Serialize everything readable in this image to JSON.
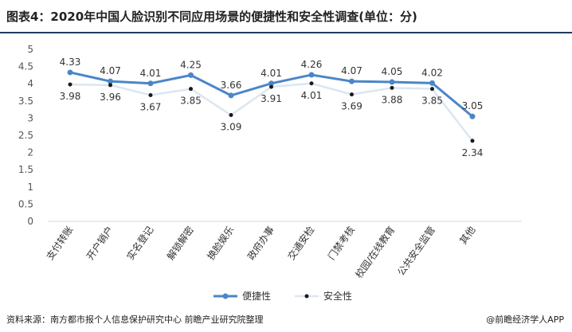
{
  "title": "图表4：2020年中国人脸识别不同应用场景的便捷性和安全性调查(单位：分)",
  "source": "资料来源：南方都市报个人信息保护研究中心 前瞻产业研究院整理",
  "credit": "@前瞻经济学人APP",
  "colors": {
    "series1": "#4a86c8",
    "series2": "#dce6f2",
    "marker2": "#1a1a1a",
    "topline": "#1f3a5f"
  },
  "chart_data": {
    "type": "line",
    "title": "图表4：2020年中国人脸识别不同应用场景的便捷性和安全性调查(单位：分)",
    "categories": [
      "支付转账",
      "开户销户",
      "实名登记",
      "解锁解密",
      "换脸娱乐",
      "政府办事",
      "交通安检",
      "门禁考核",
      "校园/在线教育",
      "公共安全监管",
      "其他"
    ],
    "series": [
      {
        "name": "便捷性",
        "values": [
          4.33,
          4.07,
          4.01,
          4.25,
          3.66,
          4.01,
          4.26,
          4.07,
          4.05,
          4.02,
          3.05
        ]
      },
      {
        "name": "安全性",
        "values": [
          3.98,
          3.96,
          3.67,
          3.85,
          3.09,
          3.91,
          4.01,
          3.69,
          3.88,
          3.85,
          2.34
        ]
      }
    ],
    "ylim": [
      0,
      5
    ],
    "yticks": [
      "0",
      "0.5",
      "1",
      "1.5",
      "2",
      "2.5",
      "3",
      "3.5",
      "4",
      "4.5",
      "5"
    ],
    "legend_position": "bottom-center",
    "grid": false
  }
}
